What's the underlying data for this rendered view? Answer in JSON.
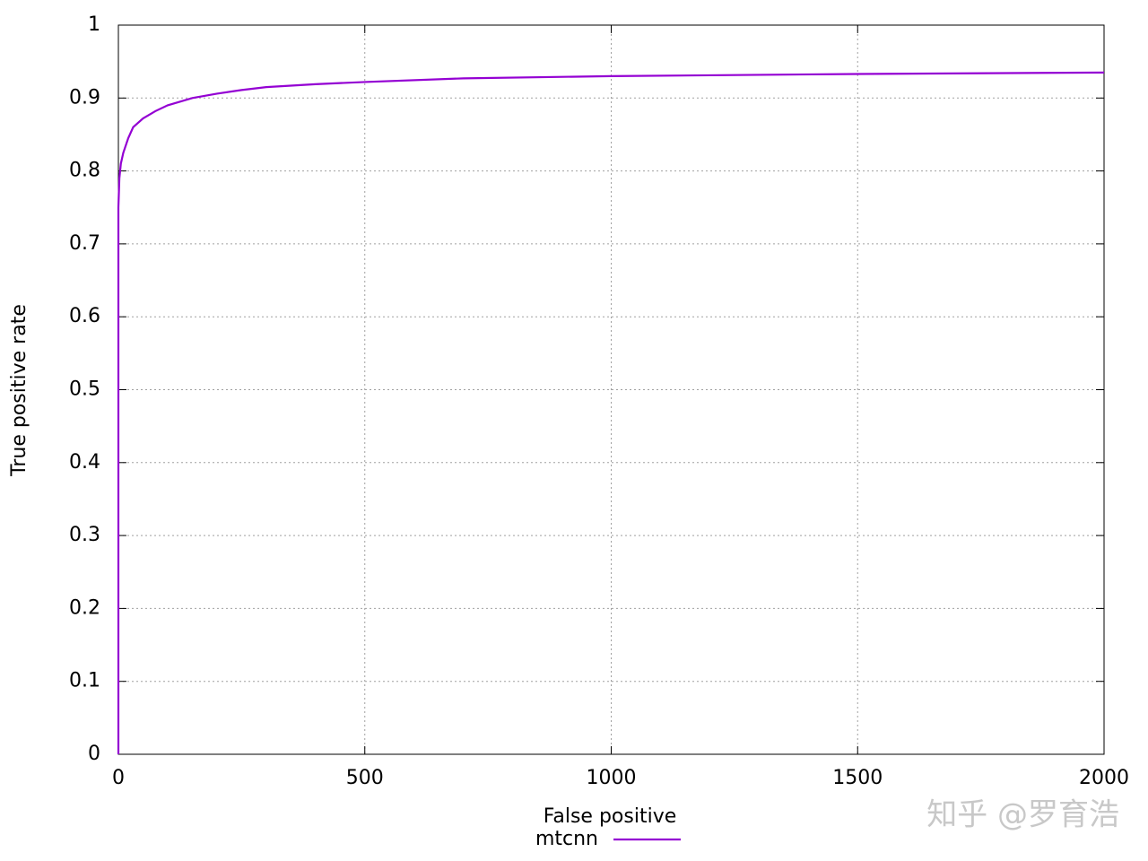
{
  "chart_data": {
    "type": "line",
    "x_label": "False positive",
    "y_label": "True positive rate",
    "x": [
      0,
      0,
      2,
      5,
      10,
      20,
      30,
      50,
      75,
      100,
      150,
      200,
      250,
      300,
      400,
      500,
      700,
      1000,
      1500,
      2000
    ],
    "series": [
      {
        "name": "mtcnn",
        "color": "#9400d3",
        "values": [
          0,
          0.75,
          0.79,
          0.81,
          0.825,
          0.845,
          0.86,
          0.872,
          0.882,
          0.89,
          0.9,
          0.906,
          0.911,
          0.915,
          0.919,
          0.922,
          0.927,
          0.93,
          0.933,
          0.935
        ]
      }
    ],
    "xlim": [
      0,
      2000
    ],
    "xticks": [
      0,
      500,
      1000,
      1500,
      2000
    ],
    "ylim": [
      0,
      1
    ],
    "yticks": [
      0,
      0.1,
      0.2,
      0.3,
      0.4,
      0.5,
      0.6,
      0.7,
      0.8,
      0.9,
      1
    ],
    "grid": true,
    "legend": "bottom",
    "watermark": "知乎 @罗育浩"
  }
}
